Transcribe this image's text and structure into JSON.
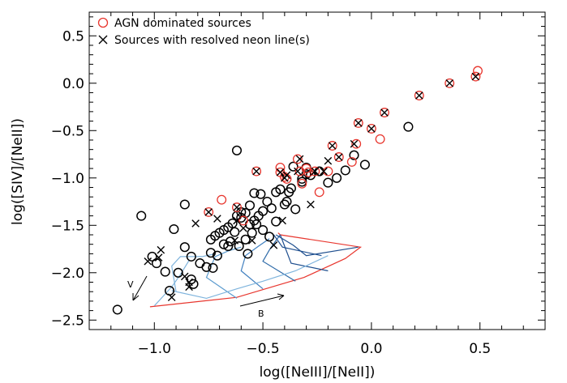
{
  "chart_data": {
    "type": "scatter",
    "xlabel": "log([NeIII]/[NeII])",
    "ylabel": "log([SIV]/[NeII])",
    "xlim": [
      -1.3,
      0.8
    ],
    "ylim": [
      -2.6,
      0.75
    ],
    "xticks": [
      -1.0,
      -0.5,
      0.0,
      0.5
    ],
    "xtick_labels": [
      "−1.0",
      "−0.5",
      "0.0",
      "0.5"
    ],
    "yticks": [
      -2.5,
      -2.0,
      -1.5,
      -1.0,
      -0.5,
      0.0,
      0.5
    ],
    "ytick_labels": [
      "−2.5",
      "−2.0",
      "−1.5",
      "−1.0",
      "−0.5",
      "0.0",
      "0.5"
    ],
    "grid": false,
    "legend_position": "top-left",
    "legend": [
      {
        "label": "AGN dominated sources",
        "marker": "circle",
        "color": "#e8362e"
      },
      {
        "label": "Sources with resolved neon line(s)",
        "marker": "x",
        "color": "#000000"
      }
    ],
    "series": [
      {
        "name": "AGN dominated sources",
        "marker": "circle",
        "color": "#e8362e",
        "x": [
          0.49,
          0.36,
          0.22,
          0.48,
          0.06,
          0.0,
          -0.06,
          -0.09,
          0.04,
          -0.18,
          -0.07,
          -0.15,
          -0.26,
          -0.29,
          -0.24,
          -0.3,
          -0.34,
          -0.42,
          -0.42,
          -0.4,
          -0.69,
          -0.33,
          -0.2,
          -0.53,
          -0.39,
          -0.62,
          -0.75,
          -0.32,
          -0.59
        ],
        "y": [
          0.13,
          0.0,
          -0.13,
          0.07,
          -0.31,
          -0.48,
          -0.42,
          -0.83,
          -0.59,
          -0.66,
          -0.64,
          -0.78,
          -0.93,
          -0.94,
          -1.15,
          -0.9,
          -0.8,
          -0.89,
          -0.94,
          -0.99,
          -1.23,
          -0.93,
          -0.93,
          -0.93,
          -1.01,
          -1.31,
          -1.36,
          -1.06,
          -1.45
        ]
      },
      {
        "name": "Sources with resolved neon line(s)",
        "marker": "x",
        "color": "#000000",
        "x": [
          0.48,
          0.36,
          0.22,
          0.06,
          0.0,
          -0.06,
          -0.08,
          -0.15,
          -0.18,
          -0.2,
          -0.22,
          -0.26,
          -0.28,
          -0.33,
          -0.34,
          -0.4,
          -0.42,
          -0.39,
          -0.53,
          -0.62,
          -0.75,
          -0.71,
          -0.81,
          -0.97,
          -0.98,
          -1.03,
          -0.92,
          -0.86,
          -0.84,
          -0.84,
          -0.63,
          -0.62,
          -0.59,
          -0.55,
          -0.45,
          -0.41
        ],
        "y": [
          0.07,
          0.0,
          -0.13,
          -0.31,
          -0.48,
          -0.42,
          -0.64,
          -0.78,
          -0.66,
          -0.82,
          -0.93,
          -0.93,
          -1.28,
          -0.8,
          -0.93,
          -1.0,
          -0.94,
          -0.97,
          -0.93,
          -1.31,
          -1.36,
          -1.43,
          -1.48,
          -1.76,
          -1.84,
          -1.88,
          -2.26,
          -2.04,
          -2.1,
          -2.15,
          -1.66,
          -1.45,
          -1.53,
          -1.66,
          -1.71,
          -1.45
        ]
      },
      {
        "name": "",
        "marker": "circle",
        "color": "#000000",
        "x": [
          0.17,
          -0.03,
          -0.08,
          -0.12,
          -0.16,
          -0.2,
          -0.24,
          -0.28,
          -0.3,
          -0.32,
          -0.36,
          -0.38,
          -0.4,
          -0.44,
          -0.46,
          -0.48,
          -0.5,
          -0.52,
          -0.54,
          -0.56,
          -0.58,
          -0.6,
          -0.62,
          -0.64,
          -0.66,
          -0.68,
          -0.7,
          -0.72,
          -0.74,
          -0.58,
          -0.55,
          -0.53,
          -0.5,
          -0.57,
          -0.61,
          -0.65,
          -0.47,
          -0.44,
          -0.6,
          -0.63,
          -0.68,
          -0.71,
          -0.74,
          -0.76,
          -0.79,
          -0.83,
          -0.86,
          -0.91,
          -0.95,
          -0.99,
          -1.06,
          -0.86,
          -0.83,
          -0.82,
          -0.93,
          -0.89,
          -0.73,
          -0.66,
          -0.54,
          -0.51,
          -0.37,
          -0.39,
          -0.3,
          -0.32,
          -0.35,
          -0.42,
          -0.56,
          -0.62,
          -1.01,
          -1.17
        ],
        "y": [
          -0.46,
          -0.86,
          -0.76,
          -0.92,
          -1.0,
          -1.05,
          -0.93,
          -0.97,
          -0.89,
          -1.01,
          -0.88,
          -1.15,
          -1.28,
          -1.15,
          -1.32,
          -1.25,
          -1.35,
          -1.4,
          -1.45,
          -1.49,
          -1.37,
          -1.42,
          -1.4,
          -1.48,
          -1.52,
          -1.55,
          -1.58,
          -1.61,
          -1.65,
          -1.65,
          -1.58,
          -1.49,
          -1.55,
          -1.8,
          -1.72,
          -1.67,
          -1.62,
          -1.46,
          -1.36,
          -1.57,
          -1.7,
          -1.82,
          -1.79,
          -1.94,
          -1.9,
          -1.83,
          -1.73,
          -1.54,
          -1.99,
          -1.9,
          -1.4,
          -1.28,
          -2.07,
          -2.12,
          -2.19,
          -2.0,
          -1.95,
          -1.72,
          -1.16,
          -1.17,
          -1.11,
          -1.25,
          -0.96,
          -1.04,
          -1.33,
          -1.12,
          -1.29,
          -0.71,
          -1.83,
          -2.39
        ]
      }
    ],
    "model_grid": {
      "lines": [
        {
          "color": "#e8362e",
          "x": [
            -1.02,
            -0.62,
            -0.31,
            -0.12,
            -0.05,
            -0.42,
            -0.43
          ],
          "y": [
            -2.36,
            -2.26,
            -2.05,
            -1.85,
            -1.73,
            -1.6,
            -1.58
          ]
        },
        {
          "color": "#7fb4dd",
          "x": [
            -1.0,
            -0.96,
            -0.92,
            -0.88,
            -0.84
          ],
          "y": [
            -2.35,
            -2.25,
            -2.15,
            -2.02,
            -1.87
          ]
        },
        {
          "color": "#7fb4dd",
          "x": [
            -0.9,
            -0.92,
            -0.88,
            -0.78,
            -0.72
          ],
          "y": [
            -2.2,
            -1.93,
            -1.83,
            -1.83,
            -1.8
          ]
        },
        {
          "color": "#5b9bcf",
          "x": [
            -0.62,
            -0.76,
            -0.72,
            -0.66,
            -0.6
          ],
          "y": [
            -2.27,
            -2.05,
            -1.83,
            -1.77,
            -1.73
          ]
        },
        {
          "color": "#3f7fbf",
          "x": [
            -0.5,
            -0.6,
            -0.58,
            -0.52,
            -0.47
          ],
          "y": [
            -2.17,
            -1.98,
            -1.82,
            -1.72,
            -1.64
          ]
        },
        {
          "color": "#2d6aa8",
          "x": [
            -0.35,
            -0.5,
            -0.47,
            -0.44,
            -0.42
          ],
          "y": [
            -2.09,
            -1.88,
            -1.76,
            -1.66,
            -1.6
          ]
        },
        {
          "color": "#1f4f8f",
          "x": [
            -0.2,
            -0.37,
            -0.42
          ],
          "y": [
            -1.98,
            -1.9,
            -1.6
          ]
        },
        {
          "color": "#1f4f8f",
          "x": [
            -0.23,
            -0.41,
            -0.45
          ],
          "y": [
            -1.82,
            -1.73,
            -1.6
          ]
        },
        {
          "color": "#1f4f8f",
          "x": [
            -0.06,
            -0.3,
            -0.36,
            -0.44
          ],
          "y": [
            -1.73,
            -1.82,
            -1.71,
            -1.6
          ]
        },
        {
          "color": "#7fb4dd",
          "x": [
            -0.92,
            -0.76,
            -0.62,
            -0.5,
            -0.35,
            -0.2
          ],
          "y": [
            -2.19,
            -2.27,
            -2.17,
            -2.09,
            -1.98,
            -1.82
          ]
        }
      ]
    },
    "annotations": [
      {
        "text": "V",
        "x": -1.09,
        "y": -2.13
      },
      {
        "text": "B",
        "x": -0.59,
        "y": -2.4
      }
    ]
  }
}
